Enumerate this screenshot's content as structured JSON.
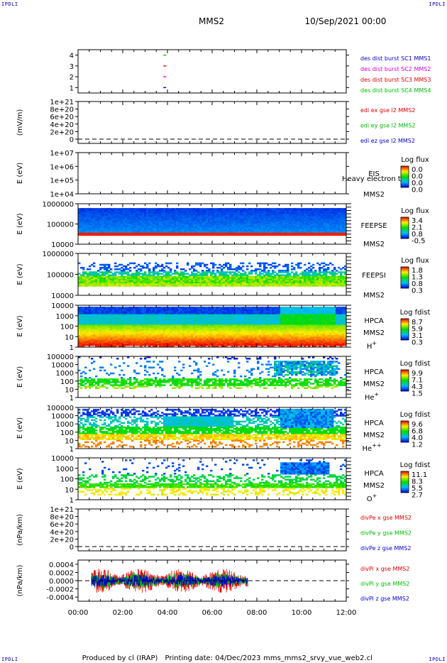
{
  "corner_tags": [
    "IPDLI",
    "IPDLI",
    "IPDLI",
    "IPDLI"
  ],
  "header": {
    "spacecraft": "MMS2",
    "datetime": "10/Sep/2021 00:00"
  },
  "footer": {
    "producer": "Produced by cl (IRAP)",
    "printing_date": "Printing date: 04/Dec/2023",
    "script_name": "mms_mms2_srvy_vue_web2.cl"
  },
  "time_axis": {
    "ticks": [
      "00:00",
      "02:00",
      "04:00",
      "06:00",
      "08:00",
      "10:00",
      "12:00"
    ],
    "range_hours": [
      0,
      12
    ]
  },
  "colors": {
    "legend_blue": "#0000cc",
    "legend_magenta": "#cc00cc",
    "legend_red": "#dd0000",
    "legend_green": "#00bb00",
    "dashed": "#000000"
  },
  "chart_data": [
    {
      "type": "scatter",
      "panel": "burst-flags",
      "yticks": [
        "4",
        "3",
        "2",
        "1"
      ],
      "ylim": [
        0.5,
        4.5
      ],
      "series": [
        {
          "name": "des dist burst SC1 MMS1",
          "color": "#0000cc",
          "x": [
            3.88
          ],
          "y": [
            1
          ]
        },
        {
          "name": "des dist burst SC2 MMS2",
          "color": "#cc00cc",
          "x": [
            3.88
          ],
          "y": [
            2
          ]
        },
        {
          "name": "des dist burst SC3 MMS3",
          "color": "#dd0000",
          "x": [
            3.88
          ],
          "y": [
            3
          ]
        },
        {
          "name": "des dist burst SC4 MMS4",
          "color": "#00bb00",
          "x": [
            3.88
          ],
          "y": [
            4
          ]
        }
      ]
    },
    {
      "type": "line",
      "panel": "edi-electric-field",
      "ylabel": "(mV/m)",
      "yticks": [
        "1e+21",
        "8e+20",
        "6e+20",
        "4e+20",
        "2e+20",
        "0"
      ],
      "ylim": [
        -2e+20,
        1.1e+21
      ],
      "series": [
        {
          "name": "edi ex gse l2 MMS2",
          "color": "#dd0000"
        },
        {
          "name": "edi ey gse l2 MMS2",
          "color": "#00bb00"
        },
        {
          "name": "edi ez gse l2 MMS2",
          "color": "#0000cc"
        }
      ]
    },
    {
      "type": "heatmap",
      "panel": "eis",
      "ylabel": "E (eV)",
      "yticks": [
        "1e+07",
        "1e+06",
        "1e+05",
        "1e+04"
      ],
      "instrument": "EIS",
      "spacecraft": "MMS2",
      "overlay_text": "Heavy electron to",
      "colorbar": {
        "title": "Log flux",
        "labels": [
          "0.0",
          "0.0",
          "0.0",
          "0.0"
        ]
      }
    },
    {
      "type": "heatmap",
      "panel": "feepse",
      "ylabel": "E (eV)",
      "yticks": [
        "1000000",
        "100000",
        "10000"
      ],
      "instrument": "FEEPSE",
      "spacecraft": "MMS2",
      "colorbar": {
        "title": "Log flux",
        "labels": [
          "3.4",
          "2.1",
          "0.8",
          "-0.5"
        ]
      }
    },
    {
      "type": "heatmap",
      "panel": "feepsi",
      "ylabel": "E (eV)",
      "yticks": [
        "1000000",
        "100000",
        "10000"
      ],
      "instrument": "FEEPSI",
      "spacecraft": "MMS2",
      "colorbar": {
        "title": "Log flux",
        "labels": [
          "1.8",
          "1.3",
          "0.8",
          "0.3"
        ]
      }
    },
    {
      "type": "heatmap",
      "panel": "hpca-h",
      "ylabel": "E (eV)",
      "yticks": [
        "10000",
        "1000",
        "100",
        "10",
        "1"
      ],
      "instrument": "HPCA",
      "spacecraft": "MMS2",
      "species": "H",
      "charge": "+",
      "colorbar": {
        "title": "Log fdist",
        "labels": [
          "8.7",
          "5.9",
          "3.1",
          "0.3"
        ]
      }
    },
    {
      "type": "heatmap",
      "panel": "hpca-he",
      "ylabel": "E (eV)",
      "yticks": [
        "100000",
        "10000",
        "1000",
        "100",
        "10",
        "1"
      ],
      "instrument": "HPCA",
      "spacecraft": "MMS2",
      "species": "He",
      "charge": "+",
      "colorbar": {
        "title": "Log fdist",
        "labels": [
          "9.9",
          "7.1",
          "4.3",
          "1.5"
        ]
      }
    },
    {
      "type": "heatmap",
      "panel": "hpca-he2",
      "ylabel": "E (eV)",
      "yticks": [
        "100000",
        "10000",
        "1000",
        "100",
        "10",
        "1"
      ],
      "instrument": "HPCA",
      "spacecraft": "MMS2",
      "species": "He",
      "charge": "++",
      "colorbar": {
        "title": "Log fdist",
        "labels": [
          "9.6",
          "6.8",
          "4.0",
          "1.2"
        ]
      }
    },
    {
      "type": "heatmap",
      "panel": "hpca-o",
      "ylabel": "E (eV)",
      "yticks": [
        "10000",
        "1000",
        "100",
        "10",
        "1"
      ],
      "instrument": "HPCA",
      "spacecraft": "MMS2",
      "species": "O",
      "charge": "+",
      "colorbar": {
        "title": "Log fdist",
        "labels": [
          "11.1",
          "8.3",
          "5.5",
          "2.7"
        ]
      }
    },
    {
      "type": "line",
      "panel": "div-pe",
      "ylabel": "(nPa/km)",
      "yticks": [
        "1e+21",
        "8e+20",
        "6e+20",
        "4e+20",
        "2e+20",
        "0"
      ],
      "ylim": [
        -2e+20,
        1.1e+21
      ],
      "series": [
        {
          "name": "divPe x gse MMS2",
          "color": "#dd0000"
        },
        {
          "name": "divPe y gse MMS2",
          "color": "#00bb00"
        },
        {
          "name": "divPe z gse MMS2",
          "color": "#0000cc"
        }
      ]
    },
    {
      "type": "line",
      "panel": "div-pi",
      "ylabel": "(nPa/km)",
      "yticks": [
        "0.0004",
        "0.0002",
        "0.0000",
        "-0.0002",
        "-0.0004"
      ],
      "ylim": [
        -0.0005,
        0.0005
      ],
      "data_range_hours": [
        0.6,
        7.6
      ],
      "series": [
        {
          "name": "divPi x gse MMS2",
          "color": "#dd0000",
          "amplitude": 0.0003
        },
        {
          "name": "divPi y gse MMS2",
          "color": "#00bb00",
          "amplitude": 0.0002
        },
        {
          "name": "divPi z gse MMS2",
          "color": "#0000cc",
          "amplitude": 0.00015
        }
      ]
    }
  ]
}
